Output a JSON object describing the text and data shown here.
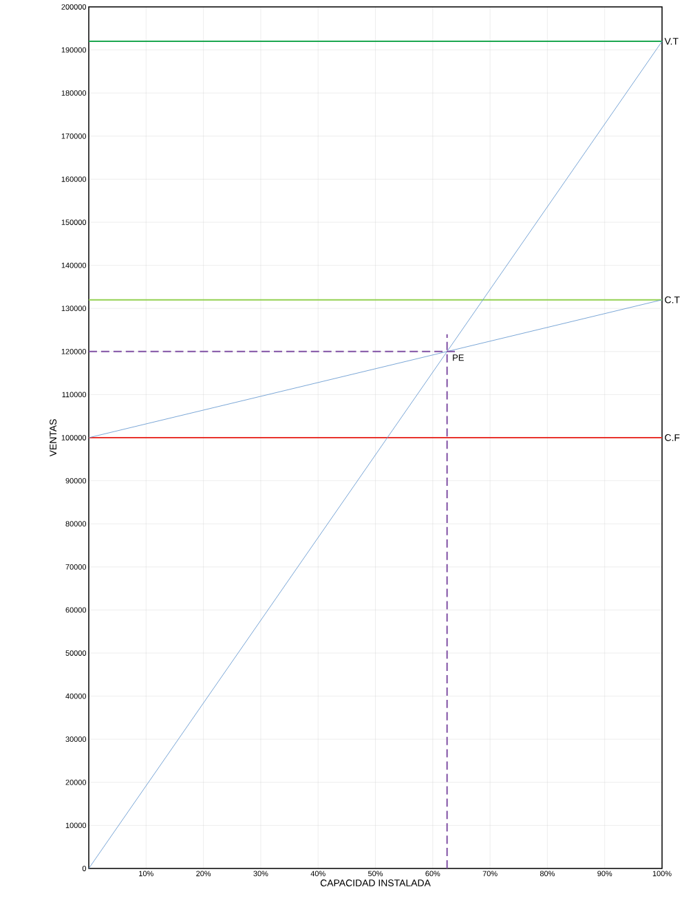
{
  "chart_data": {
    "type": "line",
    "xlabel": "CAPACIDAD INSTALADA",
    "ylabel": "VENTAS",
    "xlim": [
      0,
      100
    ],
    "ylim": [
      0,
      200000
    ],
    "xticks": [
      {
        "value": 10,
        "label": "10%"
      },
      {
        "value": 20,
        "label": "20%"
      },
      {
        "value": 30,
        "label": "30%"
      },
      {
        "value": 40,
        "label": "40%"
      },
      {
        "value": 50,
        "label": "50%"
      },
      {
        "value": 60,
        "label": "60%"
      },
      {
        "value": 70,
        "label": "70%"
      },
      {
        "value": 80,
        "label": "80%"
      },
      {
        "value": 90,
        "label": "90%"
      },
      {
        "value": 100,
        "label": "100%"
      }
    ],
    "yticks": [
      0,
      10000,
      20000,
      30000,
      40000,
      50000,
      60000,
      70000,
      80000,
      90000,
      100000,
      110000,
      120000,
      130000,
      140000,
      150000,
      160000,
      170000,
      180000,
      190000,
      200000
    ],
    "grid": true,
    "series": [
      {
        "color": "#6a9bd1",
        "x": [
          0,
          100
        ],
        "values": [
          0,
          192000
        ]
      },
      {
        "color": "#6a9bd1",
        "x": [
          0,
          100
        ],
        "values": [
          100000,
          132000
        ]
      },
      {
        "color": "#7f4fa3",
        "x": [
          0,
          64.5
        ],
        "values": [
          120000,
          120000
        ],
        "line_style": "dashed"
      },
      {
        "color": "#7f4fa3",
        "x": [
          62.5,
          62.5
        ],
        "values": [
          0,
          124000
        ],
        "line_style": "dashed"
      }
    ],
    "ref_lines": [
      {
        "axis": "y",
        "value": 192000,
        "label": "V.T",
        "color": "#1ba64f"
      },
      {
        "axis": "y",
        "value": 132000,
        "label": "C.T",
        "color": "#92d050"
      },
      {
        "axis": "y",
        "value": 100000,
        "label": "C.F",
        "color": "#e8322c"
      }
    ],
    "annotations": [
      {
        "text": "PE",
        "x": 62.5,
        "y": 120000
      }
    ]
  }
}
